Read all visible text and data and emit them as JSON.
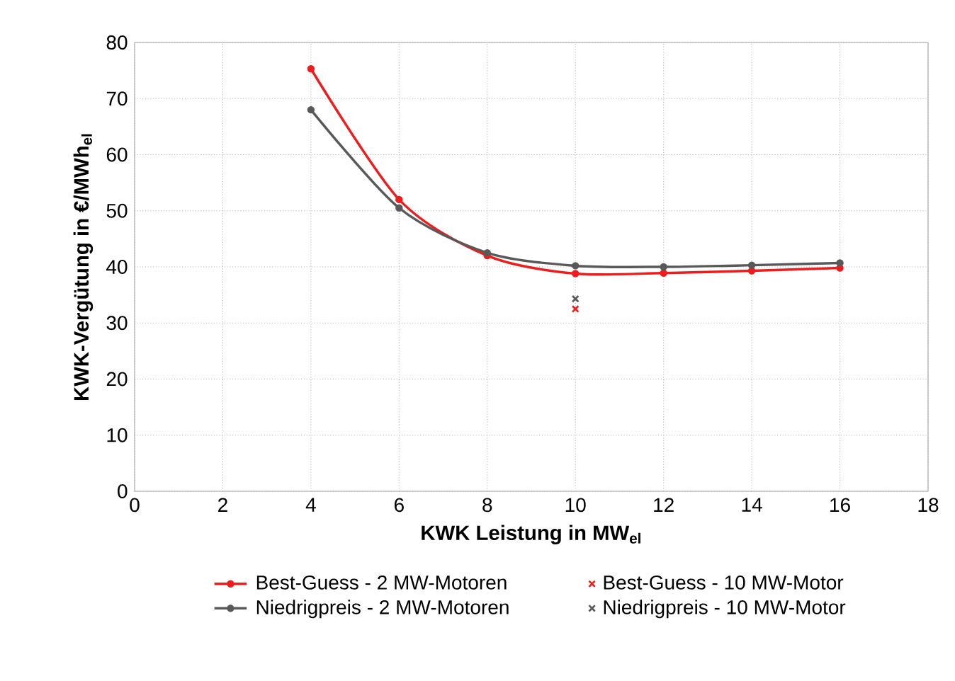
{
  "chart_data": {
    "type": "line",
    "xlabel": "KWK Leistung in MW$_{el}$",
    "ylabel": "KWK-Vergütung in €/MWh$_{el}$",
    "xlim": [
      0,
      18
    ],
    "xticks": [
      0,
      2,
      4,
      6,
      8,
      10,
      12,
      14,
      16,
      18
    ],
    "ylim": [
      0,
      80
    ],
    "yticks": [
      0,
      10,
      20,
      30,
      40,
      50,
      60,
      70,
      80
    ],
    "grid": true,
    "legend": "bottom",
    "series": [
      {
        "name": "Best-Guess - 2 MW-Motoren",
        "type": "line",
        "marker": "circle",
        "color": "#ee1c1c",
        "x": [
          4,
          6,
          8,
          10,
          12,
          14,
          16
        ],
        "values": [
          75.3,
          52,
          42,
          38.8,
          38.9,
          39.3,
          39.8
        ]
      },
      {
        "name": "Niedrigpreis - 2 MW-Motoren",
        "type": "line",
        "marker": "circle",
        "color": "#595959",
        "x": [
          4,
          6,
          8,
          10,
          12,
          14,
          16
        ],
        "values": [
          68,
          50.5,
          42.5,
          40.2,
          40,
          40.3,
          40.7
        ]
      },
      {
        "name": "Best-Guess - 10 MW-Motor",
        "type": "scatter",
        "marker": "cross",
        "color": "#ee1c1c",
        "x": [
          10
        ],
        "values": [
          32.5
        ]
      },
      {
        "name": "Niedrigpreis - 10 MW-Motor",
        "type": "scatter",
        "marker": "cross",
        "color": "#595959",
        "x": [
          10
        ],
        "values": [
          34.3
        ]
      }
    ]
  }
}
